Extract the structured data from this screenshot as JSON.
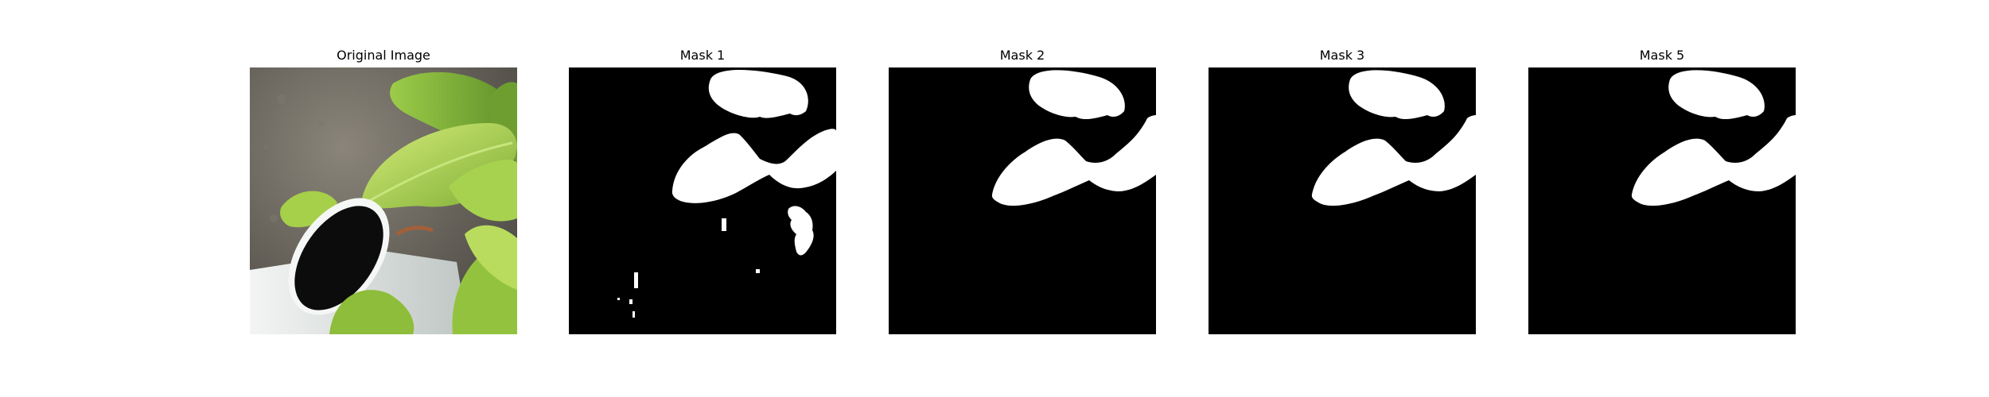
{
  "figure": {
    "panels": [
      {
        "title": "Original Image"
      },
      {
        "title": "Mask 1"
      },
      {
        "title": "Mask 2"
      },
      {
        "title": "Mask 3"
      },
      {
        "title": "Mask 5"
      }
    ]
  },
  "colors": {
    "background": "#ffffff",
    "mask_background": "#000000",
    "mask_foreground": "#ffffff",
    "leaf_light": "#b6d65a",
    "leaf_mid": "#8fbf3c",
    "leaf_dark": "#5e8c2a",
    "stone": "#6d6a5f",
    "pot_white": "#dfe3e1",
    "pot_opening": "#111111"
  }
}
